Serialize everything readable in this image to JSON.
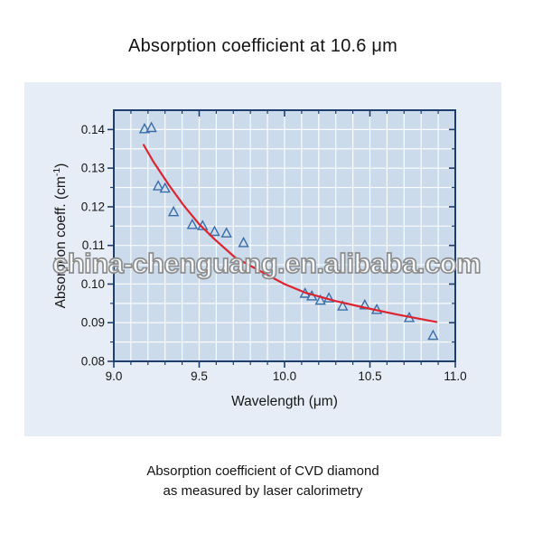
{
  "title": "Absorption coefficient at 10.6 μm",
  "watermark": {
    "text": "china-chenguang.en.alibaba.com"
  },
  "caption": {
    "line1": "Absorption coefficient of CVD diamond",
    "line2": "as measured by laser calorimetry"
  },
  "chart_data": {
    "type": "scatter",
    "title": "Absorption coefficient at 10.6 μm",
    "xlabel": "Wavelength (μm)",
    "ylabel": "Absorption coeff. (cm⁻¹)",
    "ylabel_parts": {
      "pre": "Absorption coeff. (cm",
      "sup": "-1",
      "post": ")"
    },
    "xlim": [
      9.0,
      11.0
    ],
    "ylim": [
      0.08,
      0.145
    ],
    "x_major_ticks": {
      "values": [
        9.0,
        9.5,
        10.0,
        10.5,
        11.0
      ],
      "labels": [
        "9.0",
        "9.5",
        "10.0",
        "10.5",
        "11.0"
      ]
    },
    "y_major_ticks": {
      "values": [
        0.08,
        0.09,
        0.1,
        0.11,
        0.12,
        0.13,
        0.14
      ],
      "labels": [
        "0.08",
        "0.09",
        "0.10",
        "0.11",
        "0.12",
        "0.13",
        "0.14"
      ]
    },
    "x_minor_step": 0.1,
    "y_minor_step": 0.005,
    "grid": {
      "on": true,
      "x_step": 0.1,
      "y_step": 0.005
    },
    "legend": "none",
    "style": {
      "panel_bg": "#e7edf6",
      "plot_bg": "#cbdbeb",
      "grid_color": "#ffffff",
      "frame_color": "#1e3e6e",
      "marker_stroke": "#3a6ca8",
      "marker_fill": "#cfdfee",
      "curve_color": "#dc2430",
      "text_color": "#161616",
      "watermark_outline": "#8d8d8d"
    },
    "series": [
      {
        "name": "CVD diamond measured points",
        "type": "scatter",
        "marker": "triangle-up",
        "points": [
          [
            9.18,
            0.1401
          ],
          [
            9.22,
            0.1404
          ],
          [
            9.26,
            0.1253
          ],
          [
            9.3,
            0.1247
          ],
          [
            9.35,
            0.1186
          ],
          [
            9.46,
            0.1153
          ],
          [
            9.52,
            0.115
          ],
          [
            9.59,
            0.1135
          ],
          [
            9.66,
            0.1131
          ],
          [
            9.76,
            0.1106
          ],
          [
            10.12,
            0.0975
          ],
          [
            10.16,
            0.0968
          ],
          [
            10.21,
            0.0957
          ],
          [
            10.26,
            0.0963
          ],
          [
            10.34,
            0.0942
          ],
          [
            10.47,
            0.0945
          ],
          [
            10.54,
            0.0933
          ],
          [
            10.73,
            0.0912
          ],
          [
            10.87,
            0.0866
          ]
        ]
      },
      {
        "name": "fit curve",
        "type": "line",
        "points": [
          [
            9.175,
            0.136
          ],
          [
            9.23,
            0.1318
          ],
          [
            9.32,
            0.1258
          ],
          [
            9.41,
            0.1203
          ],
          [
            9.5,
            0.1155
          ],
          [
            9.59,
            0.1116
          ],
          [
            9.71,
            0.1069
          ],
          [
            9.855,
            0.1034
          ],
          [
            10.0,
            0.1
          ],
          [
            10.12,
            0.0978
          ],
          [
            10.3,
            0.0956
          ],
          [
            10.48,
            0.0938
          ],
          [
            10.66,
            0.0921
          ],
          [
            10.84,
            0.0906
          ],
          [
            10.89,
            0.0902
          ]
        ]
      }
    ]
  }
}
